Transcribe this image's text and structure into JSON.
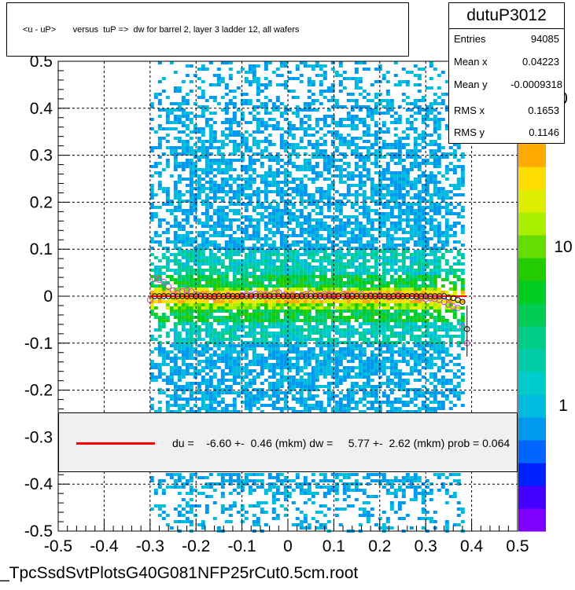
{
  "title": "<u - uP>       versus  tuP =>  dw for barrel 2, layer 3 ladder 12, all wafers",
  "footer": "_TpcSsdSvtPlotsG40G081NFP25rCut0.5cm.root",
  "stats": {
    "name": "dutuP3012",
    "rows": [
      {
        "key": "Entries",
        "value": "94085"
      },
      {
        "key": "Mean x",
        "value": "0.04223"
      },
      {
        "key": "Mean y",
        "value": "-0.0009318"
      },
      {
        "key": "RMS x",
        "value": "0.1653"
      },
      {
        "key": "RMS y",
        "value": "0.1146"
      }
    ]
  },
  "fit": {
    "line_color": "#ff0000",
    "text": "du =    -6.60 +-  0.46 (mkm) dw =     5.77 +-  2.62 (mkm) prob = 0.064"
  },
  "palette": {
    "labels": [
      "1",
      "10",
      "0"
    ],
    "colors": [
      "#7f00ff",
      "#4400ff",
      "#0022ff",
      "#0066ff",
      "#0099ee",
      "#00bbdd",
      "#00cccc",
      "#00ccaa",
      "#00cc88",
      "#00cc55",
      "#00cc22",
      "#22cc00",
      "#66dd00",
      "#aaee00",
      "#ddee00",
      "#ffdd00",
      "#ffaa00"
    ]
  },
  "chart_data": {
    "type": "heatmap",
    "xlim": [
      -0.5,
      0.5
    ],
    "ylim": [
      -0.5,
      0.5
    ],
    "x_ticks": [
      "-0.5",
      "-0.4",
      "-0.3",
      "-0.2",
      "-0.1",
      "0",
      "0.1",
      "0.2",
      "0.3",
      "0.4",
      "0.5"
    ],
    "y_ticks": [
      "-0.5",
      "-0.4",
      "-0.3",
      "-0.2",
      "-0.1",
      "0",
      "0.1",
      "0.2",
      "0.3",
      "0.4",
      "0.5"
    ],
    "grid": true,
    "z_scale": "log",
    "occupied_x_range": [
      -0.3,
      0.38
    ],
    "profile_black": {
      "x": [
        -0.29,
        -0.28,
        -0.27,
        -0.26,
        -0.25,
        -0.24,
        -0.23,
        -0.22,
        -0.21,
        -0.2,
        -0.19,
        -0.18,
        -0.17,
        -0.16,
        -0.15,
        -0.14,
        -0.13,
        -0.12,
        -0.11,
        -0.1,
        -0.09,
        -0.08,
        -0.07,
        -0.06,
        -0.05,
        -0.04,
        -0.03,
        -0.02,
        -0.01,
        0,
        0.01,
        0.02,
        0.03,
        0.04,
        0.05,
        0.06,
        0.07,
        0.08,
        0.09,
        0.1,
        0.11,
        0.12,
        0.13,
        0.14,
        0.15,
        0.16,
        0.17,
        0.18,
        0.19,
        0.2,
        0.21,
        0.22,
        0.23,
        0.24,
        0.25,
        0.26,
        0.27,
        0.28,
        0.29,
        0.3,
        0.31,
        0.32,
        0.33,
        0.34,
        0.35,
        0.36,
        0.37,
        0.38,
        0.39
      ],
      "y": [
        0,
        0,
        0,
        0,
        0,
        0,
        0,
        0,
        0,
        0,
        0,
        0,
        0,
        0,
        0,
        0,
        0,
        0,
        0,
        0,
        0,
        0,
        0,
        0,
        0,
        0,
        0,
        0,
        0,
        0,
        0,
        0,
        0,
        0,
        0,
        0,
        0,
        0,
        0,
        0,
        0,
        0,
        0,
        0,
        0,
        0,
        0,
        0,
        0,
        0,
        0,
        0,
        0,
        0,
        0,
        0,
        0,
        0,
        0,
        0,
        0,
        0,
        0,
        0,
        -0.003,
        -0.004,
        -0.008,
        -0.012,
        -0.07
      ]
    },
    "profile_magenta": {
      "x": [
        -0.3,
        -0.29,
        -0.28,
        -0.27,
        -0.26,
        -0.25,
        -0.24,
        -0.23,
        -0.22,
        -0.21,
        -0.2,
        -0.19,
        -0.18,
        -0.17,
        -0.16,
        -0.15,
        -0.14,
        -0.13,
        -0.12,
        -0.11,
        -0.1,
        -0.09,
        -0.08,
        -0.07,
        -0.06,
        -0.05,
        -0.04,
        -0.03,
        -0.02,
        -0.01,
        0,
        0.01,
        0.02,
        0.03,
        0.04,
        0.05,
        0.06,
        0.07,
        0.08,
        0.09,
        0.1,
        0.11,
        0.12,
        0.13,
        0.14,
        0.15,
        0.16,
        0.17,
        0.18,
        0.19,
        0.2,
        0.21,
        0.22,
        0.23,
        0.24,
        0.25,
        0.26,
        0.27,
        0.28,
        0.29,
        0.3,
        0.31,
        0.32,
        0.33,
        0.34,
        0.35,
        0.36,
        0.37,
        0.38,
        0.39
      ],
      "y": [
        -0.008,
        0.037,
        0.035,
        0.03,
        0.02,
        0.012,
        0.006,
        0.01,
        0.013,
        0.01,
        0.004,
        0.002,
        0,
        0,
        -0.002,
        0,
        0,
        0.002,
        0,
        0,
        0.002,
        0.004,
        0.003,
        0.005,
        0.004,
        0.003,
        0.002,
        0.006,
        0.008,
        0.002,
        0,
        0.003,
        0,
        0.002,
        0.004,
        0.006,
        0,
        0.002,
        0.004,
        0.003,
        0.003,
        0.001,
        0.004,
        0.002,
        0.001,
        0,
        0.004,
        0,
        0.002,
        0.001,
        0.002,
        0,
        -0.002,
        0,
        0.002,
        0,
        0,
        0,
        -0.002,
        -0.004,
        -0.006,
        -0.004,
        -0.006,
        -0.008,
        -0.012,
        -0.018,
        -0.022,
        -0.025,
        -0.065,
        -0.1
      ]
    },
    "fit_line": {
      "x": [
        -0.3,
        0.39
      ],
      "y": [
        0,
        0
      ]
    }
  }
}
